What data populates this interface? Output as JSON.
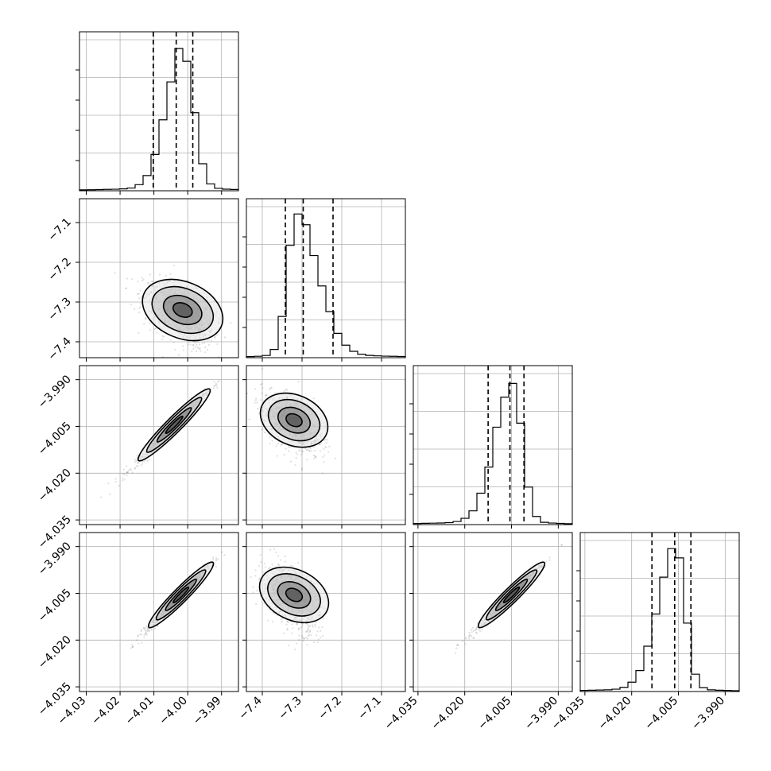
{
  "chart_data": {
    "type": "corner",
    "parameters": [
      {
        "range": [
          -4.032,
          -3.985
        ],
        "ticks": [
          -4.03,
          -4.02,
          -4.01,
          -4.0,
          -3.99
        ],
        "tick_labels": [
          "−4.03",
          "−4.02",
          "−4.01",
          "−4.00",
          "−3.99"
        ],
        "quantiles": [
          -4.0102,
          -4.0034,
          -3.9985
        ],
        "mode": -4.0015,
        "sigma_left": 0.0048,
        "sigma_right": 0.0032,
        "y_ticks_count": 4,
        "hist_max": 1.0
      },
      {
        "range": [
          -7.44,
          -7.04
        ],
        "ticks": [
          -7.4,
          -7.3,
          -7.2,
          -7.1
        ],
        "tick_labels": [
          "−7.4",
          "−7.3",
          "−7.2",
          "−7.1"
        ],
        "quantiles": [
          -7.342,
          -7.297,
          -7.222
        ],
        "mode": -7.315,
        "sigma_left": 0.022,
        "sigma_right": 0.055,
        "y_ticks_count": 4,
        "hist_max": 1.0
      },
      {
        "range": [
          -4.0365,
          -3.9855
        ],
        "ticks": [
          -4.035,
          -4.02,
          -4.005,
          -3.99
        ],
        "tick_labels": [
          "−4.035",
          "−4.020",
          "−4.005",
          "−3.990"
        ],
        "quantiles": [
          -4.0125,
          -4.0055,
          -4.001
        ],
        "mode": -4.0045,
        "sigma_left": 0.0058,
        "sigma_right": 0.003,
        "y_ticks_count": 4,
        "hist_max": 1.0
      },
      {
        "range": [
          -4.0365,
          -3.9855
        ],
        "ticks": [
          -4.035,
          -4.02,
          -4.005,
          -3.99
        ],
        "tick_labels": [
          "−4.035",
          "−4.020",
          "−4.005",
          "−3.990"
        ],
        "quantiles": [
          -4.0135,
          -4.0062,
          -4.001
        ],
        "mode": -4.0058,
        "sigma_left": 0.0058,
        "sigma_right": 0.003,
        "y_ticks_count": 4,
        "hist_max": 1.0
      }
    ],
    "pairs": [
      {
        "row": 1,
        "col": 0,
        "center": [
          -4.0015,
          -7.32
        ],
        "spread": [
          0.005,
          0.04
        ],
        "corr": -0.45
      },
      {
        "row": 2,
        "col": 0,
        "center": [
          -4.004,
          -4.0045
        ],
        "spread": [
          0.005,
          0.0055
        ],
        "corr": 0.985
      },
      {
        "row": 2,
        "col": 1,
        "center": [
          -7.32,
          -4.003
        ],
        "spread": [
          0.035,
          0.0045
        ],
        "corr": -0.45
      },
      {
        "row": 3,
        "col": 0,
        "center": [
          -4.002,
          -4.0055
        ],
        "spread": [
          0.0045,
          0.005
        ],
        "corr": 0.985
      },
      {
        "row": 3,
        "col": 1,
        "center": [
          -7.32,
          -4.0055
        ],
        "spread": [
          0.035,
          0.005
        ],
        "corr": -0.45
      },
      {
        "row": 3,
        "col": 2,
        "center": [
          -4.005,
          -4.0055
        ],
        "spread": [
          0.005,
          0.005
        ],
        "corr": 0.985
      }
    ],
    "grid": true,
    "quantile_levels": [
      0.16,
      0.5,
      0.84
    ]
  }
}
